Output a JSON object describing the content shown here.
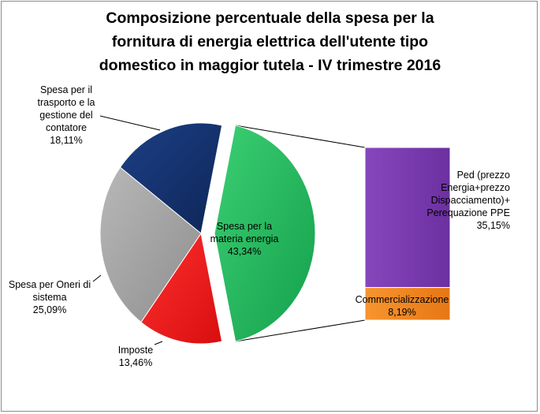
{
  "chart_data": {
    "type": "bar-of-pie",
    "title": "Composizione percentuale della spesa per la fornitura di energia elettrica dell'utente tipo domestico in maggior tutela - IV trimestre 2016",
    "title_lines": [
      "Composizione percentuale della spesa per la",
      "fornitura di energia elettrica dell'utente tipo",
      "domestico in maggior tutela - IV trimestre 2016"
    ],
    "unit": "%",
    "pie": {
      "slices": [
        {
          "key": "materia",
          "label_lines": [
            "Spesa per la",
            "materia energia"
          ],
          "value": 43.34,
          "value_text": "43,34%",
          "color": "#1fb459"
        },
        {
          "key": "imposte",
          "label_lines": [
            "Imposte"
          ],
          "value": 13.46,
          "value_text": "13,46%",
          "color": "#ee1414"
        },
        {
          "key": "oneri",
          "label_lines": [
            "Spesa per Oneri di",
            "sistema"
          ],
          "value": 25.09,
          "value_text": "25,09%",
          "color": "#a0a0a0"
        },
        {
          "key": "trasporto",
          "label_lines": [
            "Spesa per il",
            "trasporto e la",
            "gestione del",
            "contatore"
          ],
          "value": 18.11,
          "value_text": "18,11%",
          "color": "#13306a"
        }
      ]
    },
    "bar": {
      "breakdown_of": "materia",
      "segments": [
        {
          "key": "ped",
          "label_lines": [
            "Ped (prezzo",
            "Energia+prezzo",
            "Dispacciamento)+",
            "Perequazione PPE"
          ],
          "value": 35.15,
          "value_text": "35,15%",
          "color": "#7a3ab0"
        },
        {
          "key": "comm",
          "label_lines": [
            "Commercializzazione"
          ],
          "value": 8.19,
          "value_text": "8,19%",
          "color": "#f08521"
        }
      ]
    }
  }
}
